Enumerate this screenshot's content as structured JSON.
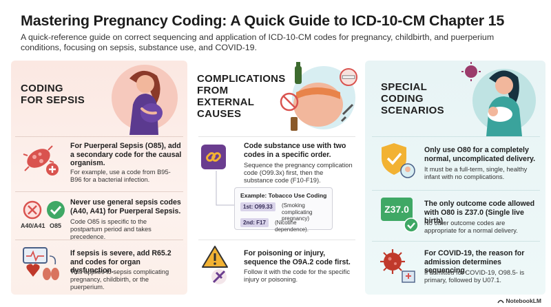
{
  "header": {
    "title": "Mastering Pregnancy Coding: A Quick Guide to ICD-10-CM Chapter 15",
    "subtitle": "A quick-reference guide on correct sequencing and application of ICD-10-CM codes for pregnancy, childbirth, and puerperium conditions, focusing on sepsis, substance use, and COVID-19."
  },
  "sepsis": {
    "heading": "CODING\nFOR SEPSIS",
    "item1_head": "For Puerperal Sepsis (O85), add a secondary code for the causal organism.",
    "item1_body": "For example, use a code from B95-B96 for a bacterial infection.",
    "item2_head": "Never use general sepsis codes (A40, A41) for Puerperal Sepsis.",
    "item2_body": "Code O85 is specific to the postpartum period and takes precedence.",
    "item2_label_a": "A40/A41",
    "item2_label_b": "O85",
    "item3_head": "If sepsis is severe, add R65.2 and codes for organ dysfunction.",
    "item3_body": "This applies to sepsis complicating pregnancy, childbirth, or the puerperium."
  },
  "external": {
    "heading": "COMPLICATIONS\nFROM\nEXTERNAL\nCAUSES",
    "item1_head": "Code substance use with two codes in a specific order.",
    "item1_body": "Sequence the pregnancy complication code (O99.3x) first, then the substance code (F10-F19).",
    "example_title": "Example: Tobacco Use Coding",
    "tag1": "1st: O99.33",
    "tag1_note": "(Smoking complicating pregnancy)",
    "tag2": "2nd: F17",
    "tag2_note": "(Nicotine dependence).",
    "item2_head": "For poisoning or injury, sequence the O9A.2 code first.",
    "item2_body": "Follow it with the code for the specific injury or poisoning."
  },
  "special": {
    "heading": "SPECIAL\nCODING\nSCENARIOS",
    "item1_head": "Only use O80 for a completely normal, uncomplicated delivery.",
    "item1_body": "It must be a full-term, single, healthy infant with no complications.",
    "item2_badge": "Z37.0",
    "item2_head": "The only outcome code allowed with O80 is Z37.0 (Single live birth).",
    "item2_body": "No other outcome codes are appropriate for a normal delivery.",
    "item3_head": "For COVID-19, the reason for admission determines sequencing.",
    "item3_body": "If admitted for COVID-19, O98.5- is primary, followed by U07.1."
  },
  "footer": {
    "brand": "NotebookLM"
  },
  "colors": {
    "sepsis_panel": "#fbe8e2",
    "special_panel": "#e8f4f5",
    "virus": "#c0392b",
    "check": "#3fa865",
    "forbidden": "#d9534f",
    "shield": "#f2b233",
    "tag": "#d9d3ea"
  }
}
